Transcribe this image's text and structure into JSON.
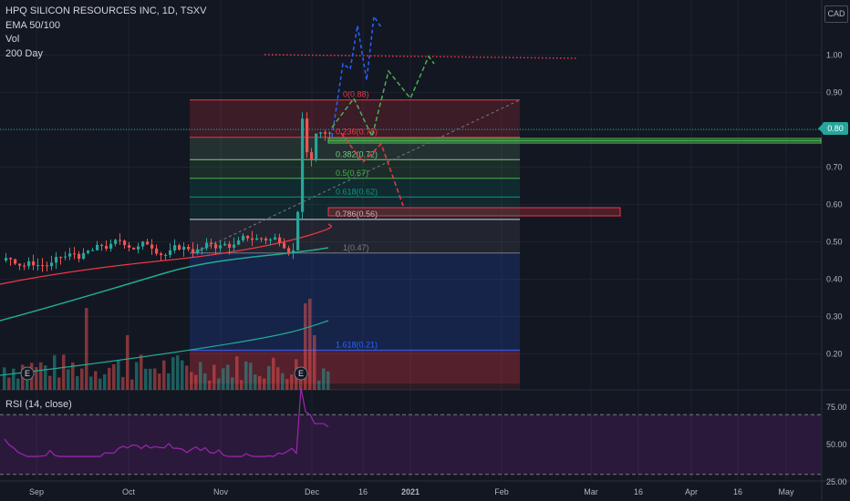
{
  "legend": {
    "title": "HPQ SILICON RESOURCES INC, 1D, TSXV",
    "ema": "EMA 50/100",
    "vol": "Vol",
    "sma": "200 Day"
  },
  "currency": "CAD",
  "last_price": "0.80",
  "rsi_label": "RSI (14, close)",
  "colors": {
    "background": "#131722",
    "up": "#26a69a",
    "down": "#ef5350",
    "ema50": "#f23645",
    "ema100": "#22ab94",
    "sma200": "#2962ff",
    "rsi": "#9c27b0",
    "grid": "#1e222d"
  },
  "chart_data": {
    "type": "candlestick",
    "y_axis": {
      "ticks": [
        "1.00",
        "0.90",
        "0.80",
        "0.70",
        "0.60",
        "0.50",
        "0.40",
        "0.30",
        "0.20"
      ],
      "values": [
        1.0,
        0.9,
        0.8,
        0.7,
        0.6,
        0.5,
        0.4,
        0.3,
        0.2
      ],
      "range": [
        0.12,
        1.08
      ]
    },
    "x_axis": {
      "labels": [
        "Sep",
        "Oct",
        "Nov",
        "Dec",
        "16",
        "2021",
        "Feb",
        "Mar",
        "16",
        "Apr",
        "16",
        "May"
      ]
    },
    "rsi_axis": {
      "ticks": [
        "75.00",
        "50.00",
        "25.00"
      ],
      "values": [
        75,
        50,
        25
      ],
      "bands": [
        70,
        30
      ]
    },
    "fibonacci": [
      {
        "label": "0(0.88)",
        "level": 0.88,
        "color": "#f23645"
      },
      {
        "label": "0.236(0.78)",
        "level": 0.78,
        "color": "#f23645"
      },
      {
        "label": "0.382(0.72)",
        "level": 0.72,
        "color": "#81c784"
      },
      {
        "label": "0.5(0.67)",
        "level": 0.67,
        "color": "#4caf50"
      },
      {
        "label": "0.618(0.62)",
        "level": 0.62,
        "color": "#089981"
      },
      {
        "label": "0.786(0.56)",
        "level": 0.56,
        "color": "#d1d4dc"
      },
      {
        "label": "1(0.47)",
        "level": 0.47,
        "color": "#787b86"
      },
      {
        "label": "1.618(0.21)",
        "level": 0.21,
        "color": "#2962ff"
      }
    ],
    "events": [
      "E",
      "E"
    ],
    "last_close": 0.8
  }
}
